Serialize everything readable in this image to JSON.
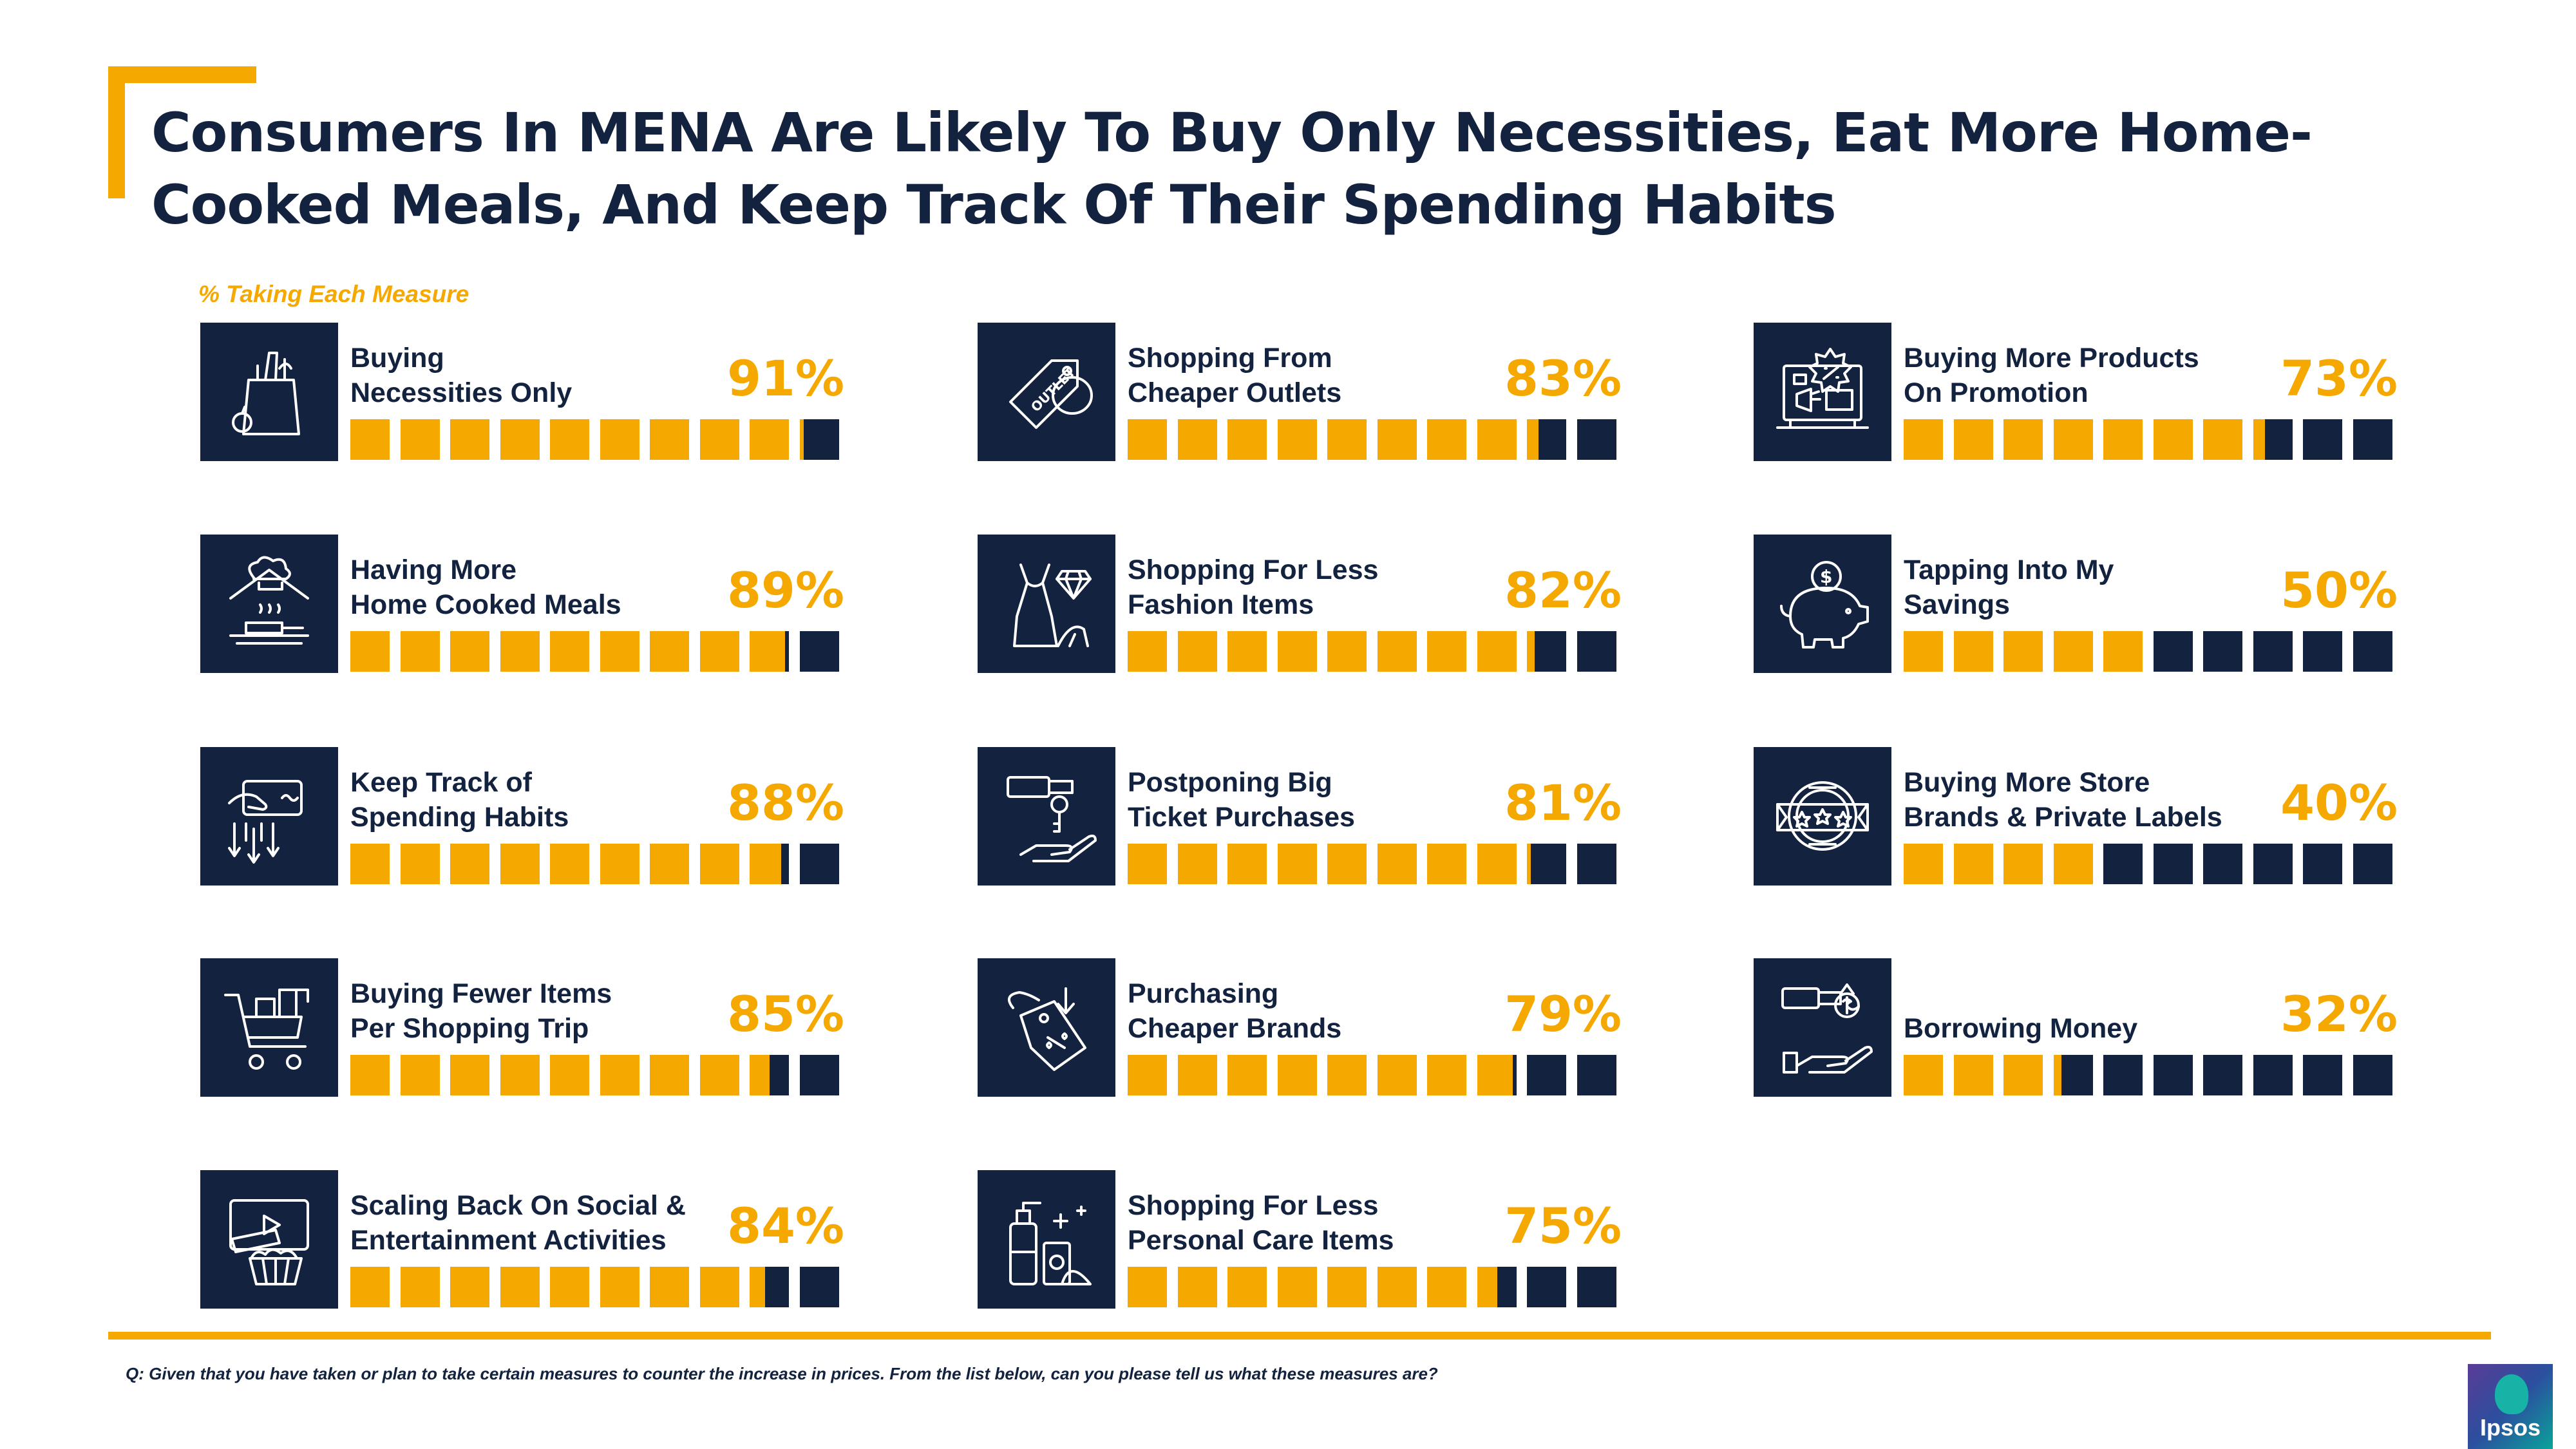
{
  "title": "Consumers In MENA Are Likely To Buy Only Necessities, Eat More Home-Cooked Meals, And Keep Track Of Their Spending Habits",
  "subtitle": "% Taking Each Measure",
  "question": "Q: Given that you have taken or plan to take certain measures to counter the increase in prices. From the list below, can you please tell us what these measures are?",
  "logo_text": "Ipsos",
  "colors": {
    "accent": "#f5a800",
    "navy": "#13233f"
  },
  "chart_data": {
    "type": "bar",
    "segments_per_bar": 10,
    "items": [
      {
        "label_line1": "Buying",
        "label_line2": "Necessities Only",
        "value": 91,
        "value_label": "91%",
        "icon": "grocery-bag-icon"
      },
      {
        "label_line1": "Having More",
        "label_line2": "Home Cooked Meals",
        "value": 89,
        "value_label": "89%",
        "icon": "chef-cooking-icon"
      },
      {
        "label_line1": "Keep Track of",
        "label_line2": "Spending Habits",
        "value": 88,
        "value_label": "88%",
        "icon": "card-tracking-icon"
      },
      {
        "label_line1": "Buying Fewer Items",
        "label_line2": "Per Shopping Trip",
        "value": 85,
        "value_label": "85%",
        "icon": "shopping-cart-icon"
      },
      {
        "label_line1": "Scaling Back On Social &",
        "label_line2": "Entertainment Activities",
        "value": 84,
        "value_label": "84%",
        "icon": "entertainment-icon"
      },
      {
        "label_line1": "Shopping From",
        "label_line2": "Cheaper Outlets",
        "value": 83,
        "value_label": "83%",
        "icon": "outlet-tag-icon"
      },
      {
        "label_line1": "Shopping For Less",
        "label_line2": "Fashion Items",
        "value": 82,
        "value_label": "82%",
        "icon": "fashion-dress-icon"
      },
      {
        "label_line1": "Postponing Big",
        "label_line2": "Ticket Purchases",
        "value": 81,
        "value_label": "81%",
        "icon": "key-hand-icon"
      },
      {
        "label_line1": "Purchasing",
        "label_line2": "Cheaper Brands",
        "value": 79,
        "value_label": "79%",
        "icon": "discount-tag-icon"
      },
      {
        "label_line1": "Shopping For Less",
        "label_line2": "Personal Care Items",
        "value": 75,
        "value_label": "75%",
        "icon": "personal-care-icon"
      },
      {
        "label_line1": "Buying More Products",
        "label_line2": "On Promotion",
        "value": 73,
        "value_label": "73%",
        "icon": "promotion-store-icon"
      },
      {
        "label_line1": "Tapping Into My",
        "label_line2": "Savings",
        "value": 50,
        "value_label": "50%",
        "icon": "piggy-bank-icon"
      },
      {
        "label_line1": "Buying More Store",
        "label_line2": "Brands & Private Labels",
        "value": 40,
        "value_label": "40%",
        "icon": "store-brand-badge-icon"
      },
      {
        "label_line1": "",
        "label_line2": "Borrowing Money",
        "value": 32,
        "value_label": "32%",
        "icon": "borrow-money-hand-icon"
      }
    ]
  }
}
